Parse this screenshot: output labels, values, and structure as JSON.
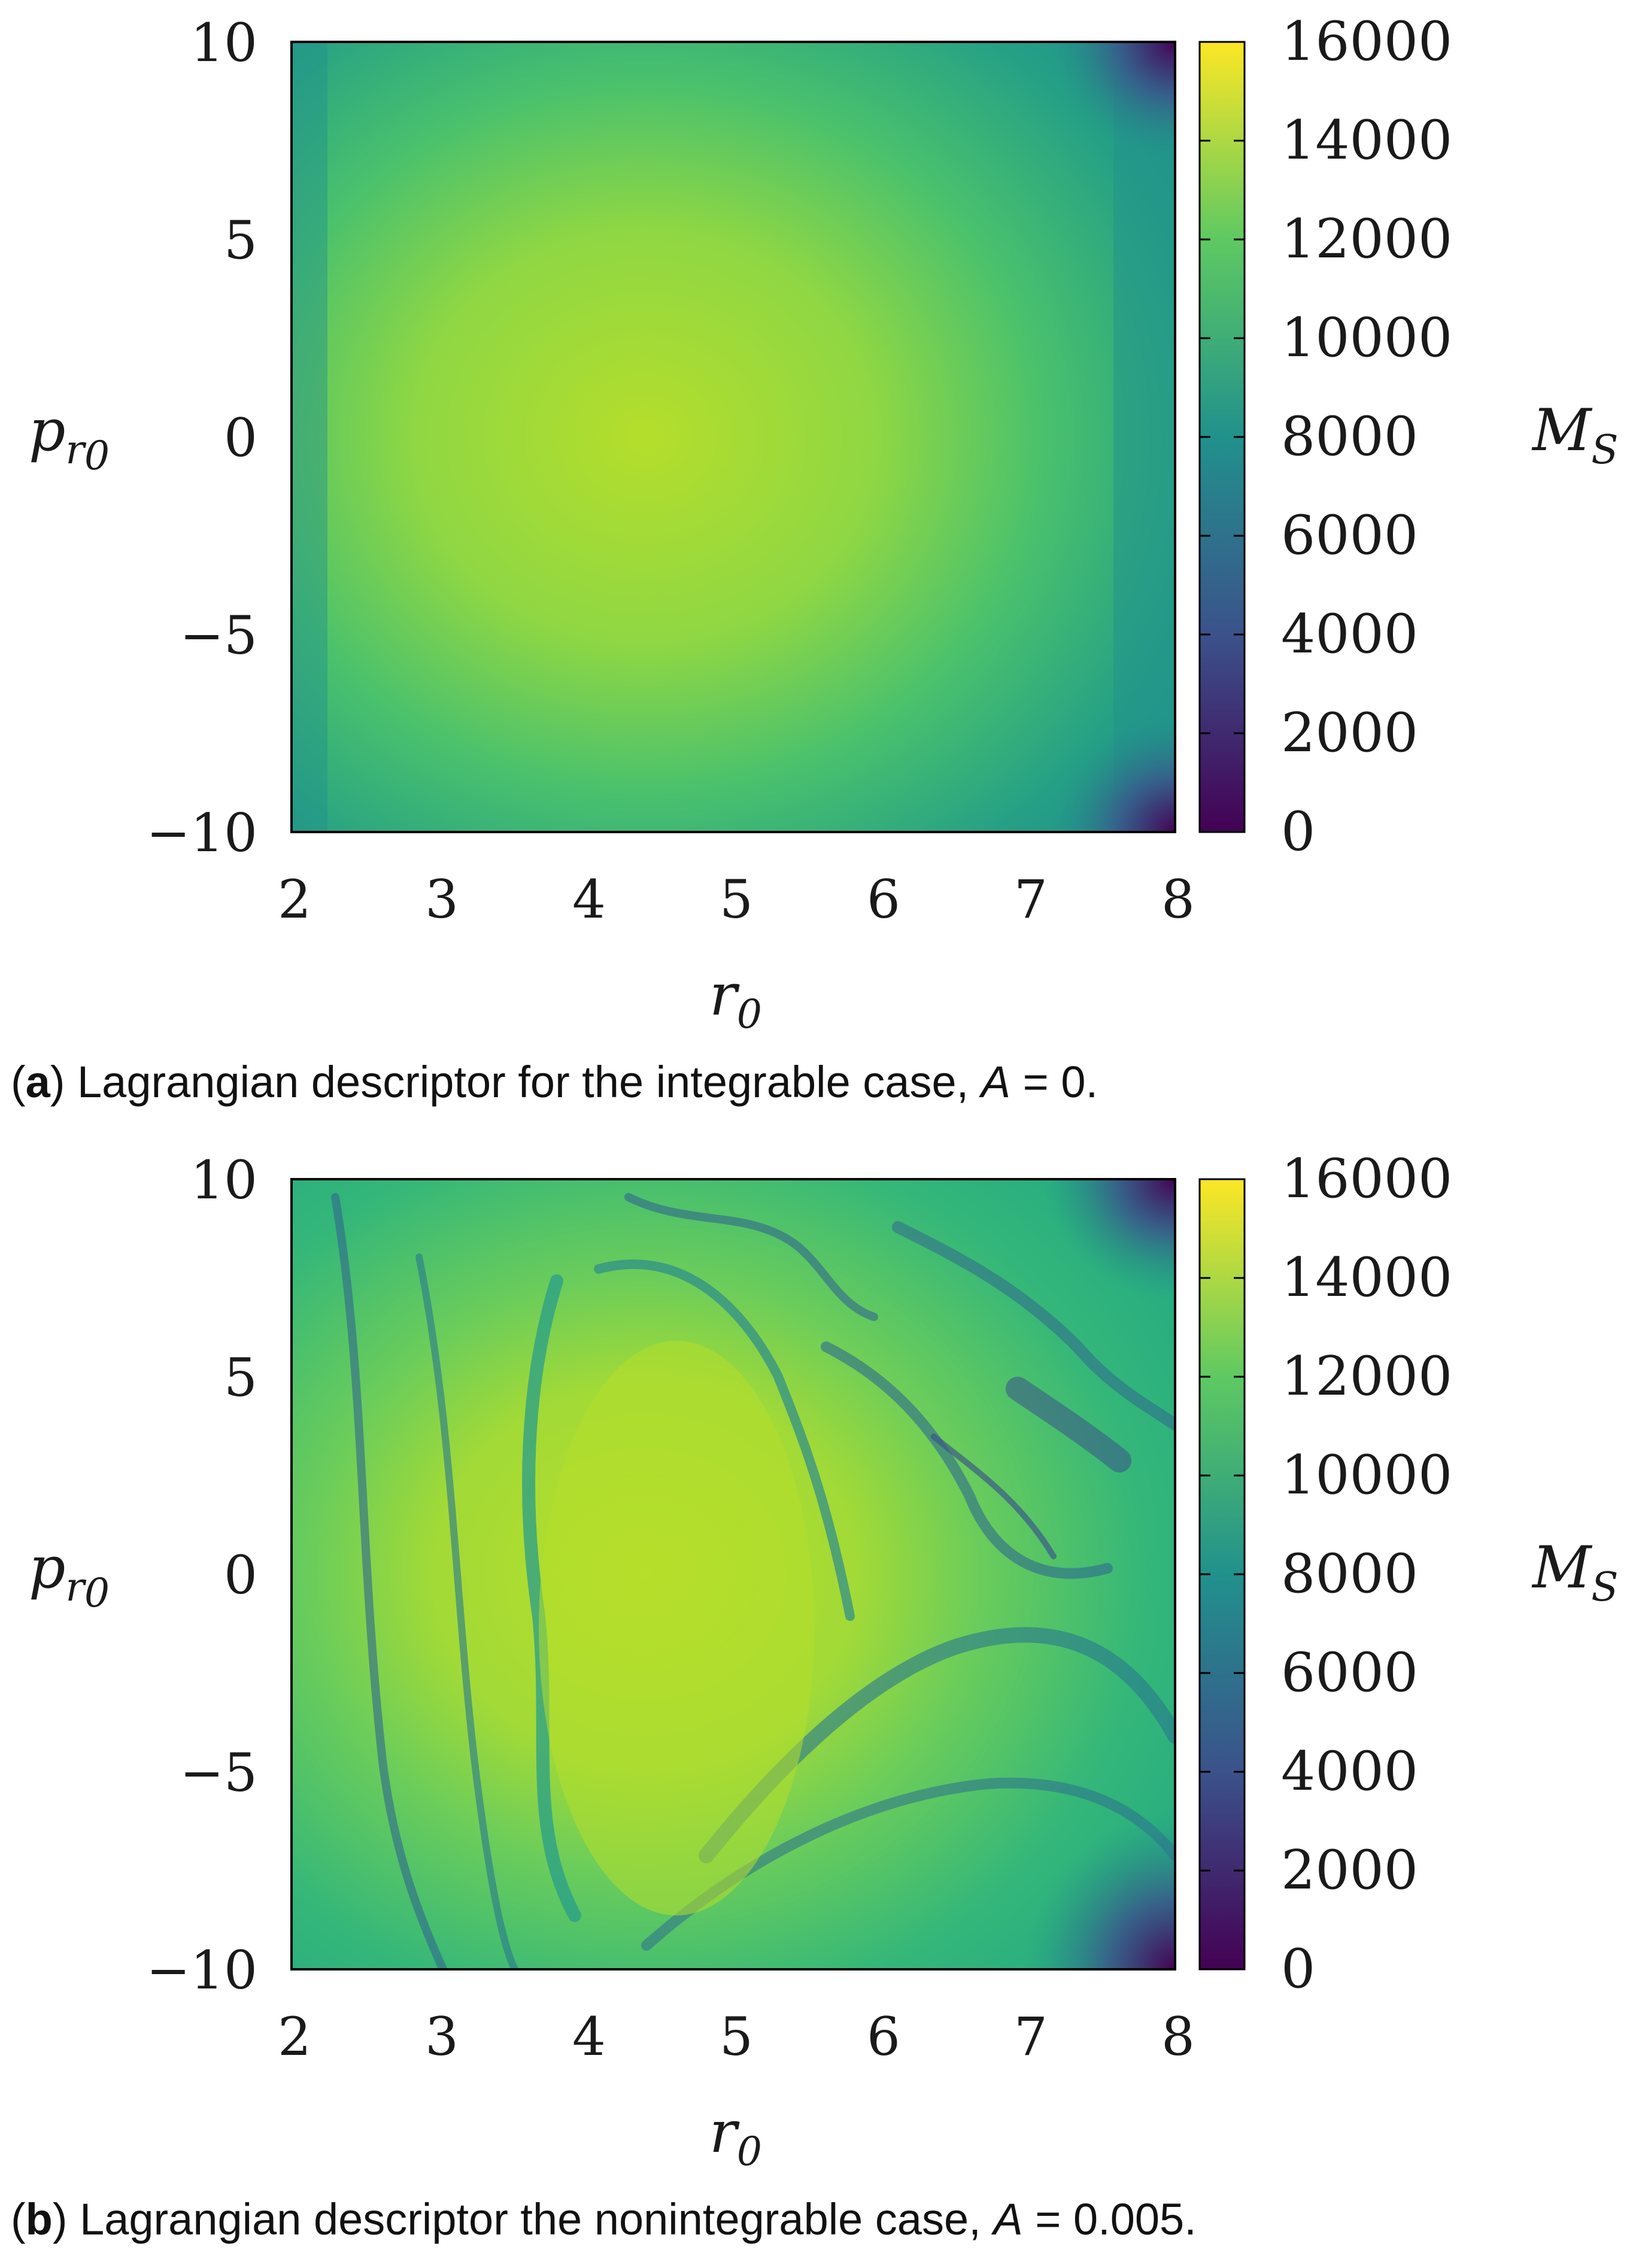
{
  "chart_data": [
    {
      "type": "heatmap",
      "title": "",
      "caption": {
        "label": "a",
        "text": "Lagrangian descriptor for the integrable case, ",
        "param_name": "A",
        "param_equals": " = ",
        "param_value": "0",
        "end": "."
      },
      "x_ticks": [
        "2",
        "3",
        "4",
        "5",
        "6",
        "7",
        "8"
      ],
      "y_ticks": [
        "10",
        "5",
        "0",
        "−5",
        "−10"
      ],
      "xlim": [
        2,
        8
      ],
      "ylim": [
        -10,
        10
      ],
      "xlabel": "r",
      "xlabel_sub": "0",
      "ylabel": "p",
      "ylabel_sub_r": "r",
      "ylabel_sub_0": "0",
      "colorbar_label": "M",
      "colorbar_label_sub": "S",
      "colorbar_ticks": [
        "16000",
        "14000",
        "12000",
        "10000",
        "8000",
        "6000",
        "4000",
        "2000",
        "0"
      ],
      "colorbar_range": [
        0,
        16000
      ],
      "field": {
        "center_r": 4.4,
        "center_p": 0,
        "peak_value": 13800,
        "edge_value": 8500,
        "corner_min": 0
      },
      "colormap": [
        "#440154",
        "#3b528b",
        "#21918c",
        "#5ec962",
        "#fde725"
      ]
    },
    {
      "type": "heatmap",
      "title": "",
      "caption": {
        "label": "b",
        "text": "Lagrangian descriptor the nonintegrable case, ",
        "param_name": "A",
        "param_equals": " = ",
        "param_value": "0.005",
        "end": "."
      },
      "x_ticks": [
        "2",
        "3",
        "4",
        "5",
        "6",
        "7",
        "8"
      ],
      "y_ticks": [
        "10",
        "5",
        "0",
        "−5",
        "−10"
      ],
      "xlim": [
        2,
        8
      ],
      "ylim": [
        -10,
        10
      ],
      "xlabel": "r",
      "xlabel_sub": "0",
      "ylabel": "p",
      "ylabel_sub_r": "r",
      "ylabel_sub_0": "0",
      "colorbar_label": "M",
      "colorbar_label_sub": "S",
      "colorbar_ticks": [
        "16000",
        "14000",
        "12000",
        "10000",
        "8000",
        "6000",
        "4000",
        "2000",
        "0"
      ],
      "colorbar_range": [
        0,
        16000
      ],
      "field": {
        "center_r": 4.5,
        "center_p": -0.5,
        "peak_value": 13500,
        "edge_value": 9500,
        "corner_min": 0,
        "chaotic": true
      },
      "colormap": [
        "#440154",
        "#3b528b",
        "#21918c",
        "#5ec962",
        "#fde725"
      ]
    }
  ]
}
